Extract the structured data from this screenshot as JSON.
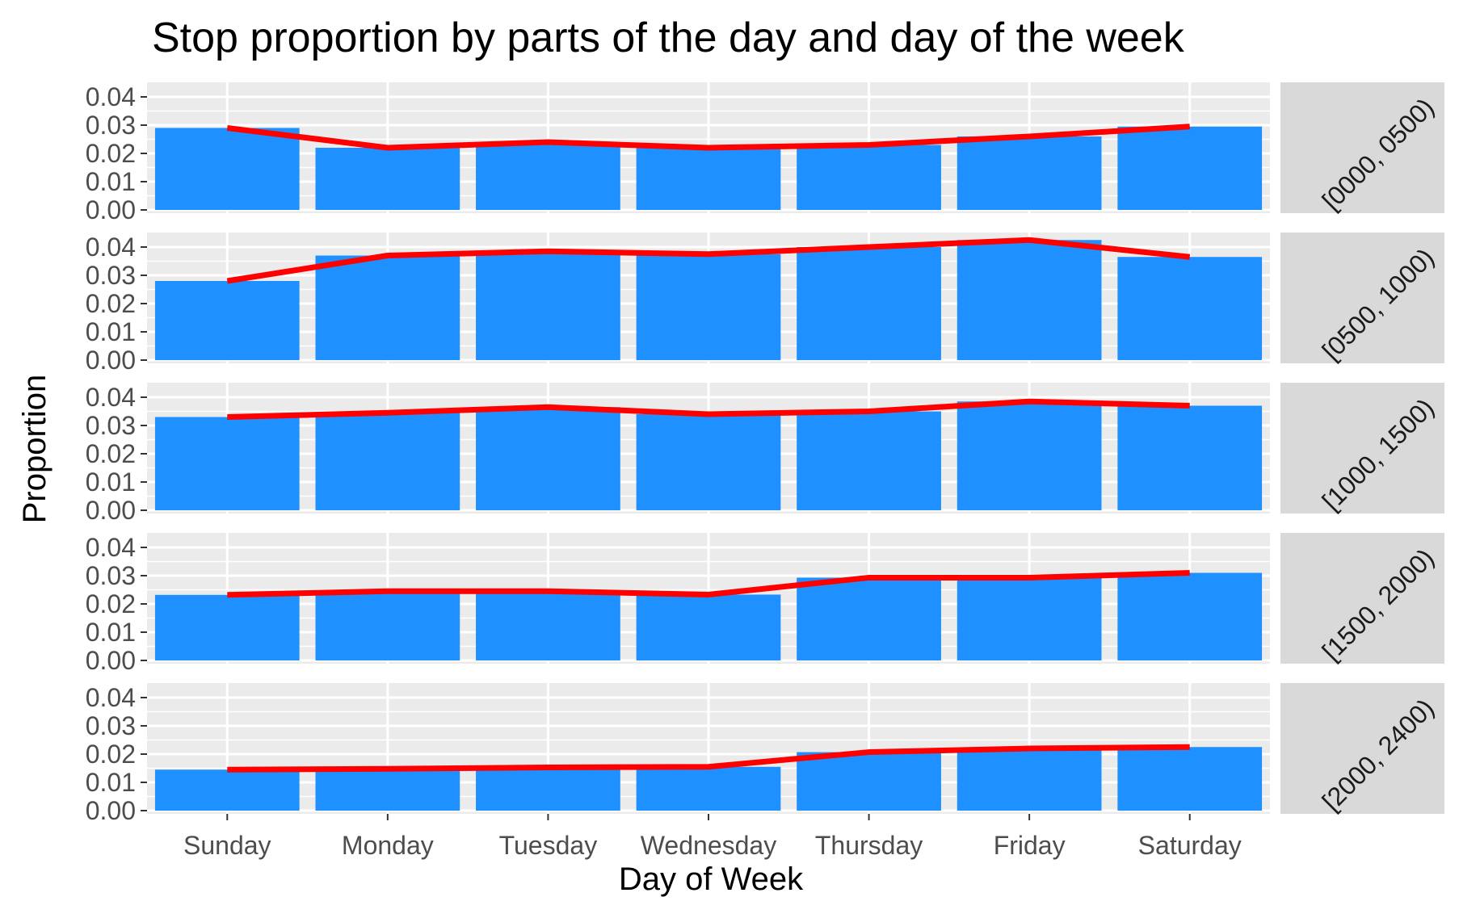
{
  "chart_data": {
    "type": "bar",
    "title": "Stop proportion by parts of the day and day of the week",
    "xlabel": "Day of Week",
    "ylabel": "Proportion",
    "categories": [
      "Sunday",
      "Monday",
      "Tuesday",
      "Wednesday",
      "Thursday",
      "Friday",
      "Saturday"
    ],
    "ylim": [
      0,
      0.044
    ],
    "yticks": [
      "0.00",
      "0.01",
      "0.02",
      "0.03",
      "0.04"
    ],
    "ytick_values": [
      0,
      0.01,
      0.02,
      0.03,
      0.04
    ],
    "grid": true,
    "line_overlay": true,
    "colors": {
      "bar": "#1e90ff",
      "line": "#ff0000",
      "panel": "#ebebeb",
      "strip": "#d9d9d9",
      "grid": "#ffffff"
    },
    "panels": [
      {
        "label": "[0000, 0500)",
        "values": [
          0.029,
          0.022,
          0.024,
          0.022,
          0.023,
          0.026,
          0.0295
        ]
      },
      {
        "label": "[0500, 1000)",
        "values": [
          0.028,
          0.037,
          0.0385,
          0.0375,
          0.04,
          0.0425,
          0.0365
        ]
      },
      {
        "label": "[1000, 1500)",
        "values": [
          0.033,
          0.0345,
          0.0365,
          0.034,
          0.035,
          0.0385,
          0.037
        ]
      },
      {
        "label": "[1500, 2000)",
        "values": [
          0.0232,
          0.0245,
          0.0245,
          0.0233,
          0.0293,
          0.0293,
          0.031
        ]
      },
      {
        "label": "[2000, 2400)",
        "values": [
          0.0145,
          0.0148,
          0.0153,
          0.0155,
          0.0207,
          0.022,
          0.0225
        ]
      }
    ]
  }
}
